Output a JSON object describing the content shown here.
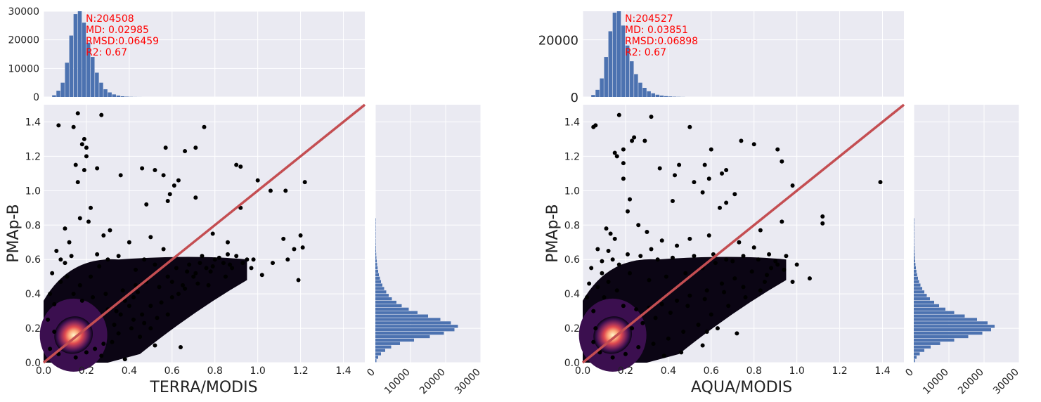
{
  "chart_data": [
    {
      "type": "scatter",
      "xlabel": "TERRA/MODIS",
      "ylabel": "PMAp-B",
      "xlim": [
        0,
        1.5
      ],
      "ylim": [
        0,
        1.5
      ],
      "x_ticks": [
        "0.0",
        "0.2",
        "0.4",
        "0.6",
        "0.8",
        "1.0",
        "1.2",
        "1.4"
      ],
      "y_ticks": [
        "0.0",
        "0.2",
        "0.4",
        "0.6",
        "0.8",
        "1.0",
        "1.2",
        "1.4"
      ],
      "grid": true,
      "reference_line": {
        "from": [
          0,
          0
        ],
        "to": [
          1.5,
          1.5
        ],
        "color": "#c44e52"
      },
      "density_colors": [
        "#0b0514",
        "#3b0f4f",
        "#8c2a5c",
        "#e04a50",
        "#fca97a",
        "#fff5c8"
      ],
      "stats": {
        "n": "N:204508",
        "md": "MD: 0.02985",
        "rmsd": "RMSD:0.06459",
        "r2": "R2: 0.67",
        "color": "#ff0000"
      },
      "top_histogram": {
        "ylim": [
          0,
          30000
        ],
        "y_ticks": [
          "0",
          "10000",
          "20000",
          "30000"
        ],
        "bin_width": 0.02,
        "bin_start": 0.04,
        "counts": [
          600,
          2200,
          5000,
          12000,
          21500,
          29000,
          30500,
          26000,
          19000,
          14000,
          8500,
          5000,
          2700,
          1600,
          900,
          500,
          250,
          120,
          60,
          30,
          15
        ],
        "color": "#4c72b0"
      },
      "right_histogram": {
        "xlim": [
          0,
          30000
        ],
        "x_ticks": [
          "0",
          "10000",
          "20000",
          "30000"
        ],
        "bin_width": 0.02,
        "bin_start": 0.0,
        "counts": [
          300,
          800,
          1600,
          2800,
          4500,
          7000,
          11000,
          15500,
          19500,
          22500,
          23500,
          21500,
          18500,
          15000,
          12000,
          9500,
          7500,
          6000,
          4700,
          3800,
          3100,
          2500,
          2000,
          1600,
          1300,
          1000,
          800,
          650,
          500,
          400,
          300,
          240,
          190,
          150,
          120,
          90,
          70,
          50,
          40,
          30,
          20,
          10
        ],
        "color": "#4c72b0"
      },
      "points": [
        [
          0.16,
          1.45
        ],
        [
          0.27,
          1.44
        ],
        [
          0.07,
          1.38
        ],
        [
          0.14,
          1.37
        ],
        [
          0.19,
          1.3
        ],
        [
          0.18,
          1.27
        ],
        [
          0.2,
          1.25
        ],
        [
          0.57,
          1.25
        ],
        [
          0.75,
          1.37
        ],
        [
          0.66,
          1.23
        ],
        [
          0.71,
          1.25
        ],
        [
          0.2,
          1.2
        ],
        [
          0.15,
          1.15
        ],
        [
          0.19,
          1.12
        ],
        [
          0.9,
          1.15
        ],
        [
          0.92,
          1.14
        ],
        [
          0.25,
          1.13
        ],
        [
          0.56,
          1.09
        ],
        [
          0.61,
          1.03
        ],
        [
          0.63,
          1.06
        ],
        [
          0.36,
          1.09
        ],
        [
          0.52,
          1.12
        ],
        [
          0.46,
          1.13
        ],
        [
          0.16,
          1.05
        ],
        [
          1.0,
          1.06
        ],
        [
          1.22,
          1.05
        ],
        [
          1.13,
          1.0
        ],
        [
          1.06,
          1.0
        ],
        [
          0.59,
          0.98
        ],
        [
          0.71,
          0.96
        ],
        [
          0.58,
          0.94
        ],
        [
          0.22,
          0.9
        ],
        [
          0.17,
          0.84
        ],
        [
          0.21,
          0.82
        ],
        [
          0.1,
          0.78
        ],
        [
          0.31,
          0.77
        ],
        [
          0.79,
          0.75
        ],
        [
          1.12,
          0.72
        ],
        [
          1.2,
          0.74
        ],
        [
          1.21,
          0.67
        ],
        [
          1.17,
          0.66
        ],
        [
          0.92,
          0.9
        ],
        [
          0.48,
          0.92
        ],
        [
          0.86,
          0.7
        ],
        [
          1.07,
          0.58
        ],
        [
          0.97,
          0.55
        ],
        [
          1.02,
          0.51
        ],
        [
          0.85,
          0.5
        ],
        [
          0.72,
          0.46
        ],
        [
          0.66,
          0.43
        ],
        [
          0.63,
          0.4
        ],
        [
          1.14,
          0.6
        ],
        [
          1.19,
          0.48
        ],
        [
          0.98,
          0.6
        ],
        [
          0.5,
          0.2
        ],
        [
          0.58,
          0.28
        ],
        [
          0.45,
          0.15
        ],
        [
          0.64,
          0.09
        ],
        [
          0.52,
          0.1
        ],
        [
          0.38,
          0.02
        ],
        [
          0.27,
          0.04
        ],
        [
          0.32,
          0.12
        ],
        [
          0.42,
          0.25
        ],
        [
          0.33,
          0.22
        ],
        [
          0.55,
          0.35
        ],
        [
          0.77,
          0.45
        ],
        [
          0.88,
          0.55
        ],
        [
          0.8,
          0.6
        ],
        [
          0.68,
          0.57
        ],
        [
          0.7,
          0.5
        ],
        [
          0.74,
          0.62
        ],
        [
          0.56,
          0.66
        ],
        [
          0.47,
          0.6
        ],
        [
          0.4,
          0.7
        ],
        [
          0.5,
          0.73
        ],
        [
          0.28,
          0.74
        ],
        [
          0.35,
          0.62
        ],
        [
          0.62,
          0.55
        ],
        [
          0.9,
          0.62
        ],
        [
          0.95,
          0.6
        ],
        [
          0.84,
          0.58
        ],
        [
          0.78,
          0.53
        ],
        [
          0.6,
          0.47
        ],
        [
          0.54,
          0.44
        ],
        [
          0.44,
          0.41
        ],
        [
          0.4,
          0.33
        ],
        [
          0.36,
          0.28
        ],
        [
          0.3,
          0.31
        ],
        [
          0.05,
          0.34
        ],
        [
          0.03,
          0.4
        ],
        [
          0.04,
          0.52
        ],
        [
          0.08,
          0.6
        ],
        [
          0.06,
          0.65
        ],
        [
          0.12,
          0.7
        ],
        [
          0.1,
          0.58
        ],
        [
          0.25,
          0.63
        ],
        [
          0.22,
          0.5
        ],
        [
          0.17,
          0.45
        ],
        [
          0.67,
          0.53
        ],
        [
          0.73,
          0.58
        ],
        [
          0.82,
          0.61
        ],
        [
          0.86,
          0.63
        ],
        [
          0.76,
          0.55
        ],
        [
          0.58,
          0.5
        ],
        [
          0.48,
          0.47
        ],
        [
          0.42,
          0.38
        ],
        [
          0.38,
          0.36
        ],
        [
          0.34,
          0.3
        ],
        [
          0.46,
          0.28
        ],
        [
          0.5,
          0.33
        ],
        [
          0.6,
          0.38
        ],
        [
          0.65,
          0.45
        ],
        [
          0.71,
          0.52
        ],
        [
          0.79,
          0.56
        ],
        [
          0.87,
          0.57
        ],
        [
          0.93,
          0.58
        ],
        [
          0.26,
          0.56
        ],
        [
          0.3,
          0.6
        ],
        [
          0.43,
          0.54
        ],
        [
          0.52,
          0.57
        ],
        [
          0.13,
          0.62
        ],
        [
          0.08,
          0.47
        ],
        [
          0.11,
          0.5
        ],
        [
          0.02,
          0.25
        ],
        [
          0.05,
          0.18
        ],
        [
          0.03,
          0.08
        ],
        [
          0.07,
          0.05
        ],
        [
          0.15,
          0.03
        ],
        [
          0.2,
          0.06
        ],
        [
          0.24,
          0.08
        ],
        [
          0.28,
          0.11
        ],
        [
          0.35,
          0.17
        ],
        [
          0.41,
          0.2
        ],
        [
          0.47,
          0.23
        ],
        [
          0.53,
          0.26
        ],
        [
          0.43,
          0.45
        ],
        [
          0.37,
          0.42
        ],
        [
          0.29,
          0.4
        ],
        [
          0.23,
          0.38
        ],
        [
          0.18,
          0.36
        ],
        [
          0.14,
          0.4
        ]
      ],
      "density_blob": {
        "center": [
          0.14,
          0.16
        ],
        "spread_x": 0.12,
        "spread_y": 0.12,
        "tail": [
          0.55,
          0.42
        ]
      }
    },
    {
      "type": "scatter",
      "xlabel": "AQUA/MODIS",
      "ylabel": "PMAp-B",
      "xlim": [
        0,
        1.5
      ],
      "ylim": [
        0,
        1.5
      ],
      "x_ticks": [
        "0.0",
        "0.2",
        "0.4",
        "0.6",
        "0.8",
        "1.0",
        "1.2",
        "1.4"
      ],
      "y_ticks": [
        "0.0",
        "0.2",
        "0.4",
        "0.6",
        "0.8",
        "1.0",
        "1.2",
        "1.4"
      ],
      "grid": true,
      "reference_line": {
        "from": [
          0,
          0
        ],
        "to": [
          1.5,
          1.5
        ],
        "color": "#c44e52"
      },
      "density_colors": [
        "#0b0514",
        "#3b0f4f",
        "#8c2a5c",
        "#e04a50",
        "#fca97a",
        "#fff5c8"
      ],
      "stats": {
        "n": "N:204527",
        "md": "MD: 0.03851",
        "rmsd": "RMSD:0.06898",
        "r2": "R2: 0.67",
        "color": "#ff0000"
      },
      "top_histogram": {
        "ylim": [
          0,
          30000
        ],
        "y_ticks": [
          "0",
          "20000"
        ],
        "bin_width": 0.02,
        "bin_start": 0.04,
        "counts": [
          700,
          2500,
          6500,
          14000,
          23000,
          29500,
          30500,
          25000,
          18000,
          12500,
          8000,
          5000,
          3200,
          2000,
          1300,
          800,
          500,
          300,
          180,
          100,
          60,
          30
        ],
        "color": "#4c72b0"
      },
      "right_histogram": {
        "xlim": [
          0,
          30000
        ],
        "x_ticks": [
          "0",
          "10000",
          "20000",
          "30000"
        ],
        "bin_width": 0.02,
        "bin_start": 0.0,
        "counts": [
          300,
          800,
          1700,
          3000,
          4800,
          7500,
          11500,
          15500,
          19500,
          22000,
          23000,
          21000,
          18000,
          14500,
          11500,
          9000,
          7200,
          5800,
          4600,
          3700,
          3000,
          2400,
          1900,
          1500,
          1200,
          950,
          750,
          600,
          470,
          370,
          290,
          230,
          180,
          140,
          110,
          85,
          65,
          50,
          35,
          25,
          15,
          8
        ],
        "color": "#4c72b0"
      },
      "points": [
        [
          0.17,
          1.44
        ],
        [
          0.32,
          1.43
        ],
        [
          0.06,
          1.38
        ],
        [
          0.05,
          1.37
        ],
        [
          0.5,
          1.37
        ],
        [
          0.24,
          1.31
        ],
        [
          0.23,
          1.29
        ],
        [
          0.29,
          1.29
        ],
        [
          0.74,
          1.29
        ],
        [
          0.8,
          1.27
        ],
        [
          0.19,
          1.24
        ],
        [
          0.6,
          1.24
        ],
        [
          0.91,
          1.24
        ],
        [
          0.15,
          1.22
        ],
        [
          0.16,
          1.2
        ],
        [
          0.93,
          1.17
        ],
        [
          0.45,
          1.15
        ],
        [
          0.57,
          1.15
        ],
        [
          0.19,
          1.16
        ],
        [
          0.43,
          1.09
        ],
        [
          0.65,
          1.1
        ],
        [
          0.67,
          1.12
        ],
        [
          0.59,
          1.07
        ],
        [
          0.19,
          1.07
        ],
        [
          0.98,
          1.03
        ],
        [
          1.39,
          1.05
        ],
        [
          0.52,
          1.05
        ],
        [
          0.36,
          1.13
        ],
        [
          0.56,
          0.99
        ],
        [
          0.22,
          0.95
        ],
        [
          0.71,
          0.98
        ],
        [
          0.64,
          0.9
        ],
        [
          0.21,
          0.88
        ],
        [
          0.42,
          0.94
        ],
        [
          0.67,
          0.93
        ],
        [
          1.12,
          0.85
        ],
        [
          1.12,
          0.81
        ],
        [
          0.93,
          0.82
        ],
        [
          0.83,
          0.77
        ],
        [
          0.59,
          0.74
        ],
        [
          0.11,
          0.78
        ],
        [
          0.13,
          0.75
        ],
        [
          0.15,
          0.72
        ],
        [
          0.07,
          0.66
        ],
        [
          0.12,
          0.65
        ],
        [
          0.26,
          0.8
        ],
        [
          0.3,
          0.76
        ],
        [
          0.5,
          0.72
        ],
        [
          0.73,
          0.7
        ],
        [
          0.8,
          0.67
        ],
        [
          0.95,
          0.62
        ],
        [
          1.06,
          0.49
        ],
        [
          1.0,
          0.57
        ],
        [
          0.88,
          0.55
        ],
        [
          0.98,
          0.47
        ],
        [
          0.87,
          0.63
        ],
        [
          0.75,
          0.62
        ],
        [
          0.67,
          0.6
        ],
        [
          0.62,
          0.58
        ],
        [
          0.56,
          0.55
        ],
        [
          0.48,
          0.52
        ],
        [
          0.39,
          0.5
        ],
        [
          0.31,
          0.48
        ],
        [
          0.22,
          0.52
        ],
        [
          0.17,
          0.57
        ],
        [
          0.09,
          0.59
        ],
        [
          0.04,
          0.55
        ],
        [
          0.03,
          0.46
        ],
        [
          0.02,
          0.38
        ],
        [
          0.05,
          0.3
        ],
        [
          0.06,
          0.2
        ],
        [
          0.05,
          0.12
        ],
        [
          0.08,
          0.06
        ],
        [
          0.14,
          0.03
        ],
        [
          0.2,
          0.05
        ],
        [
          0.26,
          0.09
        ],
        [
          0.33,
          0.11
        ],
        [
          0.4,
          0.14
        ],
        [
          0.47,
          0.18
        ],
        [
          0.54,
          0.22
        ],
        [
          0.6,
          0.28
        ],
        [
          0.68,
          0.33
        ],
        [
          0.76,
          0.38
        ],
        [
          0.83,
          0.42
        ],
        [
          0.72,
          0.17
        ],
        [
          0.56,
          0.1
        ],
        [
          0.46,
          0.06
        ],
        [
          0.38,
          0.04
        ],
        [
          0.63,
          0.2
        ],
        [
          0.58,
          0.18
        ],
        [
          0.86,
          0.51
        ],
        [
          0.91,
          0.57
        ],
        [
          0.79,
          0.53
        ],
        [
          0.71,
          0.49
        ],
        [
          0.65,
          0.46
        ],
        [
          0.58,
          0.42
        ],
        [
          0.5,
          0.39
        ],
        [
          0.44,
          0.36
        ],
        [
          0.37,
          0.34
        ],
        [
          0.31,
          0.32
        ],
        [
          0.25,
          0.31
        ],
        [
          0.19,
          0.33
        ],
        [
          0.27,
          0.62
        ],
        [
          0.35,
          0.6
        ],
        [
          0.42,
          0.61
        ],
        [
          0.52,
          0.62
        ],
        [
          0.61,
          0.63
        ],
        [
          0.7,
          0.59
        ],
        [
          0.82,
          0.6
        ],
        [
          0.9,
          0.59
        ],
        [
          0.94,
          0.54
        ],
        [
          0.85,
          0.47
        ],
        [
          0.75,
          0.44
        ],
        [
          0.66,
          0.41
        ],
        [
          0.57,
          0.37
        ],
        [
          0.49,
          0.33
        ],
        [
          0.41,
          0.29
        ],
        [
          0.34,
          0.26
        ],
        [
          0.28,
          0.23
        ],
        [
          0.23,
          0.2
        ],
        [
          0.37,
          0.71
        ],
        [
          0.44,
          0.68
        ],
        [
          0.32,
          0.66
        ],
        [
          0.21,
          0.63
        ],
        [
          0.14,
          0.6
        ],
        [
          0.09,
          0.52
        ],
        [
          0.07,
          0.44
        ],
        [
          0.1,
          0.38
        ],
        [
          0.16,
          0.42
        ],
        [
          0.12,
          0.47
        ]
      ],
      "density_blob": {
        "center": [
          0.14,
          0.16
        ],
        "spread_x": 0.12,
        "spread_y": 0.12,
        "tail": [
          0.55,
          0.42
        ]
      }
    }
  ]
}
